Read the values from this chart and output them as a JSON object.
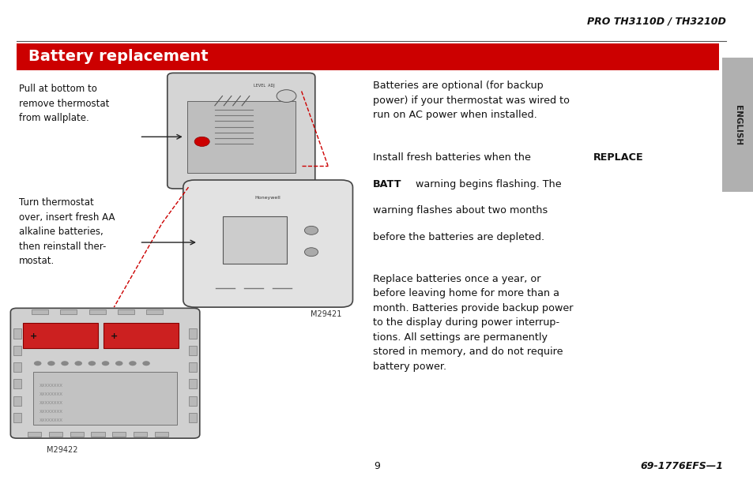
{
  "bg_color": "#ffffff",
  "header_text": "PRO TH3110D / TH3210D",
  "title_bg_color": "#cc0000",
  "title_text": "Battery replacement",
  "title_text_color": "#ffffff",
  "sidebar_bg_color": "#b0b0b0",
  "sidebar_text": "ENGLISH",
  "sidebar_text_color": "#222222",
  "left_text1": "Pull at bottom to\nremove thermostat\nfrom wallplate.",
  "left_text2": "Turn thermostat\nover, insert fresh AA\nalkaline batteries,\nthen reinstall ther-\nmostat.",
  "caption1": "M29421",
  "caption2": "M29422",
  "right_para1": "Batteries are optional (for backup\npower) if your thermostat was wired to\nrun on AC power when installed.",
  "right_para3": "Replace batteries once a year, or\nbefore leaving home for more than a\nmonth. Batteries provide backup power\nto the display during power interrup-\ntions. All settings are permanently\nstored in memory, and do not require\nbattery power.",
  "footer_page": "9",
  "footer_right": "69-1776EFS—1"
}
